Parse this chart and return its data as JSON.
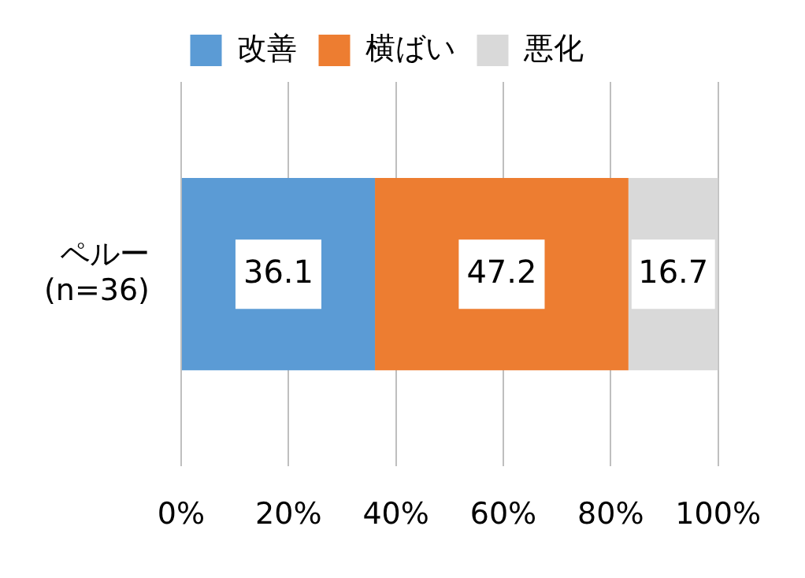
{
  "chart_data": {
    "type": "bar",
    "orientation": "horizontal",
    "stacked": true,
    "categories": [
      "ペルー\n(n=36)"
    ],
    "series": [
      {
        "name": "改善",
        "color": "#5b9bd5",
        "values": [
          36.1
        ]
      },
      {
        "name": "横ばい",
        "color": "#ed7d31",
        "values": [
          47.2
        ]
      },
      {
        "name": "悪化",
        "color": "#d9d9d9",
        "values": [
          16.7
        ]
      }
    ],
    "xlim": [
      0,
      100
    ],
    "xticks": [
      {
        "value": 0,
        "label": "0%"
      },
      {
        "value": 20,
        "label": "20%"
      },
      {
        "value": 40,
        "label": "40%"
      },
      {
        "value": 60,
        "label": "60%"
      },
      {
        "value": 80,
        "label": "80%"
      },
      {
        "value": 100,
        "label": "100%"
      }
    ],
    "grid": "x",
    "legend": "top",
    "data_labels": true
  }
}
